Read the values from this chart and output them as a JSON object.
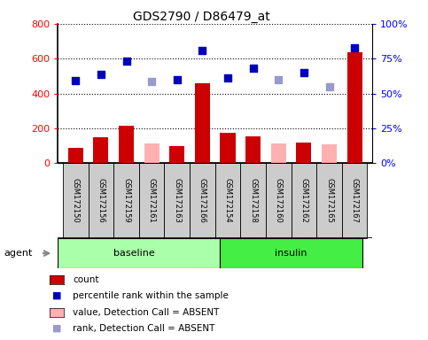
{
  "title": "GDS2790 / D86479_at",
  "samples": [
    "GSM172150",
    "GSM172156",
    "GSM172159",
    "GSM172161",
    "GSM172163",
    "GSM172166",
    "GSM172154",
    "GSM172158",
    "GSM172160",
    "GSM172162",
    "GSM172165",
    "GSM172167"
  ],
  "bar_values": [
    90,
    150,
    215,
    null,
    100,
    460,
    175,
    155,
    null,
    120,
    null,
    635
  ],
  "bar_absent_values": [
    null,
    null,
    null,
    115,
    null,
    null,
    null,
    null,
    115,
    null,
    110,
    null
  ],
  "scatter_values": [
    475,
    510,
    585,
    470,
    478,
    645,
    490,
    547,
    478,
    522,
    440,
    660
  ],
  "scatter_absent": [
    false,
    false,
    false,
    true,
    false,
    false,
    false,
    false,
    true,
    false,
    true,
    false
  ],
  "ylim_left": [
    0,
    800
  ],
  "ylim_right": [
    0,
    100
  ],
  "yticks_left": [
    0,
    200,
    400,
    600,
    800
  ],
  "ytick_labels_left": [
    "0",
    "200",
    "400",
    "600",
    "800"
  ],
  "yticks_right_vals": [
    0,
    25,
    50,
    75,
    100
  ],
  "ytick_labels_right": [
    "0%",
    "25%",
    "50%",
    "75%",
    "100%"
  ],
  "bar_color": "#cc0000",
  "bar_absent_color": "#ffb0b0",
  "scatter_present_color": "#0000bb",
  "scatter_absent_color": "#9999cc",
  "group_baseline_color": "#aaffaa",
  "group_insulin_color": "#44ee44",
  "agent_label": "agent",
  "legend_items": [
    {
      "label": "count",
      "color": "#cc0000",
      "type": "bar"
    },
    {
      "label": "percentile rank within the sample",
      "color": "#0000bb",
      "type": "scatter"
    },
    {
      "label": "value, Detection Call = ABSENT",
      "color": "#ffb0b0",
      "type": "bar"
    },
    {
      "label": "rank, Detection Call = ABSENT",
      "color": "#9999cc",
      "type": "scatter"
    }
  ]
}
